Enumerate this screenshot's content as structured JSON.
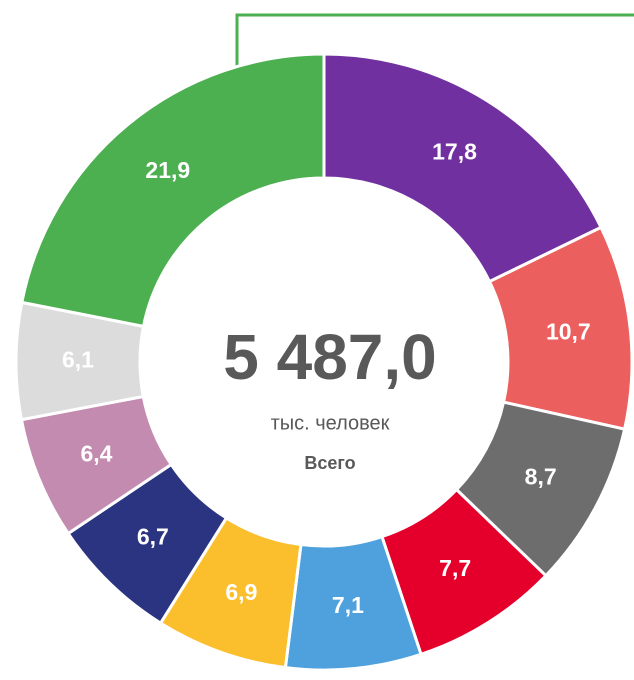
{
  "chart_data": {
    "type": "donut",
    "categories": [
      null,
      null,
      null,
      null,
      null,
      null,
      null,
      null,
      null,
      null
    ],
    "values": [
      17.8,
      10.7,
      8.7,
      7.7,
      7.1,
      6.9,
      6.7,
      6.4,
      6.1,
      21.9
    ],
    "value_labels": [
      "17,8",
      "10,7",
      "8,7",
      "7,7",
      "7,1",
      "6,9",
      "6,7",
      "6,4",
      "6,1",
      "21,9"
    ],
    "colors": [
      "#7030a0",
      "#eb5f5f",
      "#6d6d6d",
      "#e4002b",
      "#4ea1dc",
      "#fbbf2e",
      "#2b3481",
      "#c48bb0",
      "#dcdcdc",
      "#4caf50"
    ],
    "center_value": "5 487,0",
    "center_unit": "тыс. человек",
    "center_caption": "Всего"
  }
}
